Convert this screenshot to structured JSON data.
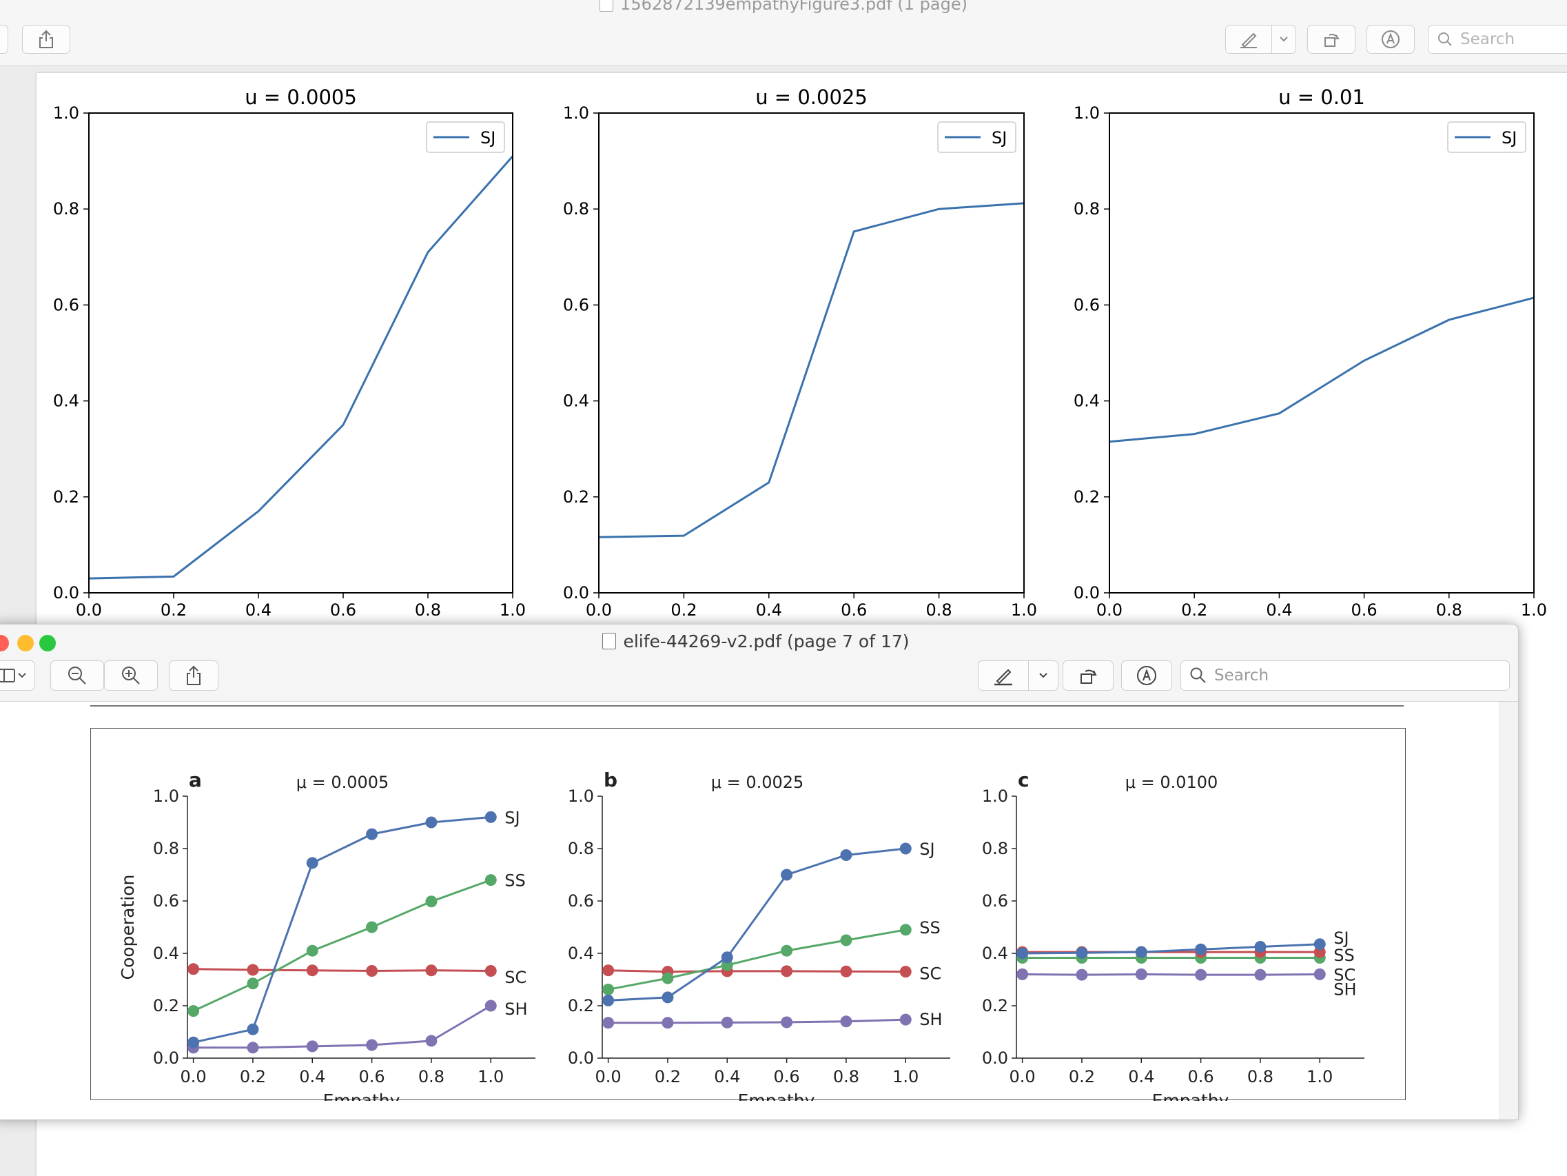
{
  "back_window": {
    "title": "1562872139empathyFigure3.pdf (1 page)",
    "search_placeholder": "Search",
    "toolbar_icons": [
      "share-icon",
      "markup-pen-icon",
      "chevron-down-icon",
      "rotate-icon",
      "annotate-icon",
      "search-icon"
    ]
  },
  "front_window": {
    "title": "elife-44269-v2.pdf (page 7 of 17)",
    "search_placeholder": "Search",
    "toolbar_icons": [
      "sidebar-icon",
      "zoom-out-icon",
      "zoom-in-icon",
      "share-icon",
      "markup-pen-icon",
      "chevron-down-icon",
      "rotate-icon",
      "annotate-icon",
      "search-icon"
    ],
    "traffic_light_colors": [
      "#ff5f57",
      "#febc2e",
      "#28c840"
    ]
  },
  "chart_data": [
    {
      "type": "line",
      "panel": "top-1",
      "title": "u = 0.0005",
      "x": [
        0.0,
        0.2,
        0.4,
        0.6,
        0.8,
        1.0
      ],
      "xlim": [
        0,
        1
      ],
      "ylim": [
        0,
        1
      ],
      "xticks": [
        "0.0",
        "0.2",
        "0.4",
        "0.6",
        "0.8",
        "1.0"
      ],
      "yticks": [
        "0.0",
        "0.2",
        "0.4",
        "0.6",
        "0.8",
        "1.0"
      ],
      "legend_position": "top-right",
      "series": [
        {
          "name": "SJ",
          "color": "#3a72ad",
          "values": [
            0.03,
            0.034,
            0.17,
            0.35,
            0.71,
            0.91
          ]
        }
      ]
    },
    {
      "type": "line",
      "panel": "top-2",
      "title": "u = 0.0025",
      "x": [
        0.0,
        0.2,
        0.4,
        0.6,
        0.8,
        1.0
      ],
      "xlim": [
        0,
        1
      ],
      "ylim": [
        0,
        1
      ],
      "xticks": [
        "0.0",
        "0.2",
        "0.4",
        "0.6",
        "0.8",
        "1.0"
      ],
      "yticks": [
        "0.0",
        "0.2",
        "0.4",
        "0.6",
        "0.8",
        "1.0"
      ],
      "legend_position": "top-right",
      "series": [
        {
          "name": "SJ",
          "color": "#3a72ad",
          "values": [
            0.116,
            0.119,
            0.23,
            0.753,
            0.8,
            0.812
          ]
        }
      ]
    },
    {
      "type": "line",
      "panel": "top-3",
      "title": "u = 0.01",
      "x": [
        0.0,
        0.2,
        0.4,
        0.6,
        0.8,
        1.0
      ],
      "xlim": [
        0,
        1
      ],
      "ylim": [
        0,
        1
      ],
      "xticks": [
        "0.0",
        "0.2",
        "0.4",
        "0.6",
        "0.8",
        "1.0"
      ],
      "yticks": [
        "0.0",
        "0.2",
        "0.4",
        "0.6",
        "0.8",
        "1.0"
      ],
      "legend_position": "top-right",
      "series": [
        {
          "name": "SJ",
          "color": "#3a72ad",
          "values": [
            0.315,
            0.331,
            0.374,
            0.484,
            0.569,
            0.615
          ]
        }
      ]
    },
    {
      "type": "line",
      "panel": "bottom-a",
      "letter": "a",
      "title": "μ = 0.0005",
      "xlabel": "Empathy",
      "ylabel": "Cooperation",
      "x": [
        0.0,
        0.2,
        0.4,
        0.6,
        0.8,
        1.0
      ],
      "xlim": [
        -0.02,
        1.15
      ],
      "ylim": [
        0,
        1
      ],
      "xticks": [
        "0.0",
        "0.2",
        "0.4",
        "0.6",
        "0.8",
        "1.0"
      ],
      "yticks": [
        "0.0",
        "0.2",
        "0.4",
        "0.6",
        "0.8",
        "1.0"
      ],
      "series": [
        {
          "name": "SJ",
          "color": "#4c72b0",
          "values": [
            0.06,
            0.11,
            0.745,
            0.855,
            0.9,
            0.92
          ]
        },
        {
          "name": "SS",
          "color": "#55a868",
          "values": [
            0.18,
            0.285,
            0.41,
            0.5,
            0.598,
            0.68
          ]
        },
        {
          "name": "SC",
          "color": "#c44e52",
          "values": [
            0.34,
            0.337,
            0.335,
            0.333,
            0.335,
            0.333
          ]
        },
        {
          "name": "SH",
          "color": "#8172b2",
          "values": [
            0.04,
            0.04,
            0.045,
            0.05,
            0.066,
            0.2
          ]
        }
      ]
    },
    {
      "type": "line",
      "panel": "bottom-b",
      "letter": "b",
      "title": "μ = 0.0025",
      "xlabel": "Empathy",
      "x": [
        0.0,
        0.2,
        0.4,
        0.6,
        0.8,
        1.0
      ],
      "xlim": [
        -0.02,
        1.15
      ],
      "ylim": [
        0,
        1
      ],
      "xticks": [
        "0.0",
        "0.2",
        "0.4",
        "0.6",
        "0.8",
        "1.0"
      ],
      "yticks": [
        "0.0",
        "0.2",
        "0.4",
        "0.6",
        "0.8",
        "1.0"
      ],
      "series": [
        {
          "name": "SJ",
          "color": "#4c72b0",
          "values": [
            0.22,
            0.232,
            0.385,
            0.7,
            0.775,
            0.8
          ]
        },
        {
          "name": "SS",
          "color": "#55a868",
          "values": [
            0.262,
            0.305,
            0.355,
            0.41,
            0.45,
            0.49
          ]
        },
        {
          "name": "SC",
          "color": "#c44e52",
          "values": [
            0.335,
            0.33,
            0.332,
            0.332,
            0.331,
            0.33
          ]
        },
        {
          "name": "SH",
          "color": "#8172b2",
          "values": [
            0.135,
            0.135,
            0.136,
            0.137,
            0.14,
            0.147
          ]
        }
      ]
    },
    {
      "type": "line",
      "panel": "bottom-c",
      "letter": "c",
      "title": "μ = 0.0100",
      "xlabel": "Empathy",
      "x": [
        0.0,
        0.2,
        0.4,
        0.6,
        0.8,
        1.0
      ],
      "xlim": [
        -0.02,
        1.15
      ],
      "ylim": [
        0,
        1
      ],
      "xticks": [
        "0.0",
        "0.2",
        "0.4",
        "0.6",
        "0.8",
        "1.0"
      ],
      "yticks": [
        "0.0",
        "0.2",
        "0.4",
        "0.6",
        "0.8",
        "1.0"
      ],
      "series": [
        {
          "name": "SJ",
          "color": "#4c72b0",
          "values": [
            0.4,
            0.402,
            0.405,
            0.415,
            0.425,
            0.435
          ]
        },
        {
          "name": "SS",
          "color": "#c44e52",
          "values": [
            0.405,
            0.405,
            0.405,
            0.405,
            0.405,
            0.405
          ]
        },
        {
          "name": "SC",
          "color": "#55a868",
          "values": [
            0.383,
            0.383,
            0.383,
            0.383,
            0.383,
            0.383
          ]
        },
        {
          "name": "SH",
          "color": "#8172b2",
          "values": [
            0.32,
            0.318,
            0.32,
            0.318,
            0.318,
            0.32
          ]
        }
      ]
    }
  ]
}
